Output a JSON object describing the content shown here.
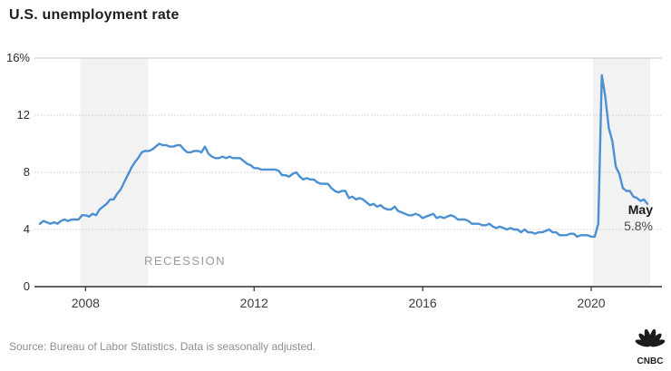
{
  "header": {
    "title": "U.S. unemployment rate"
  },
  "chart_data": {
    "type": "line",
    "title": "U.S. unemployment rate",
    "series_name": "U.S. unemployment rate, seasonally adjusted (%)",
    "series_start": "2006-12",
    "series_end": "2021-05",
    "frequency": "monthly",
    "values": [
      4.4,
      4.6,
      4.5,
      4.4,
      4.5,
      4.4,
      4.6,
      4.7,
      4.6,
      4.7,
      4.7,
      4.7,
      5.0,
      5.0,
      4.9,
      5.1,
      5.0,
      5.4,
      5.6,
      5.8,
      6.1,
      6.1,
      6.5,
      6.8,
      7.3,
      7.8,
      8.3,
      8.7,
      9.0,
      9.4,
      9.5,
      9.5,
      9.6,
      9.8,
      10.0,
      9.9,
      9.9,
      9.8,
      9.8,
      9.9,
      9.9,
      9.6,
      9.4,
      9.4,
      9.5,
      9.5,
      9.4,
      9.8,
      9.3,
      9.1,
      9.0,
      9.0,
      9.1,
      9.0,
      9.1,
      9.0,
      9.0,
      9.0,
      8.8,
      8.6,
      8.5,
      8.3,
      8.3,
      8.2,
      8.2,
      8.2,
      8.2,
      8.2,
      8.1,
      7.8,
      7.8,
      7.7,
      7.9,
      8.0,
      7.7,
      7.5,
      7.6,
      7.5,
      7.5,
      7.3,
      7.2,
      7.2,
      7.2,
      6.9,
      6.7,
      6.6,
      6.7,
      6.7,
      6.2,
      6.3,
      6.1,
      6.2,
      6.1,
      5.9,
      5.7,
      5.8,
      5.6,
      5.7,
      5.5,
      5.4,
      5.4,
      5.6,
      5.3,
      5.2,
      5.1,
      5.0,
      5.0,
      5.1,
      5.0,
      4.8,
      4.9,
      5.0,
      5.1,
      4.8,
      4.9,
      4.8,
      4.9,
      5.0,
      4.9,
      4.7,
      4.7,
      4.7,
      4.6,
      4.4,
      4.4,
      4.4,
      4.3,
      4.3,
      4.4,
      4.2,
      4.1,
      4.2,
      4.1,
      4.0,
      4.1,
      4.0,
      4.0,
      3.8,
      4.0,
      3.8,
      3.8,
      3.7,
      3.8,
      3.8,
      3.9,
      4.0,
      3.8,
      3.8,
      3.6,
      3.6,
      3.6,
      3.7,
      3.7,
      3.5,
      3.6,
      3.6,
      3.6,
      3.5,
      3.5,
      4.4,
      14.8,
      13.3,
      11.1,
      10.2,
      8.4,
      7.9,
      6.9,
      6.7,
      6.7,
      6.3,
      6.2,
      6.0,
      6.1,
      5.8
    ],
    "ylim": [
      0,
      16
    ],
    "y_ticks": [
      {
        "value": 0,
        "label": "0"
      },
      {
        "value": 4,
        "label": "4"
      },
      {
        "value": 8,
        "label": "8"
      },
      {
        "value": 12,
        "label": "12"
      },
      {
        "value": 16,
        "label": "16%"
      }
    ],
    "x_ticks": [
      {
        "month": "2008-01",
        "label": "2008"
      },
      {
        "month": "2012-01",
        "label": "2012"
      },
      {
        "month": "2016-01",
        "label": "2016"
      },
      {
        "month": "2020-01",
        "label": "2020"
      }
    ],
    "recession_bands": [
      {
        "from": "2007-12",
        "to": "2009-06"
      },
      {
        "from": "2020-02",
        "to": "2021-05"
      }
    ],
    "annotations": {
      "recession_label": "RECESSION",
      "latest_month": "May",
      "latest_value": "5.8%"
    },
    "line_color": "#4a90d2",
    "band_color": "#f2f2f2",
    "grid": true,
    "legend_position": "none"
  },
  "footer": {
    "source": "Source: Bureau of Labor Statistics. Data is seasonally adjusted.",
    "logo_text": "CNBC"
  }
}
